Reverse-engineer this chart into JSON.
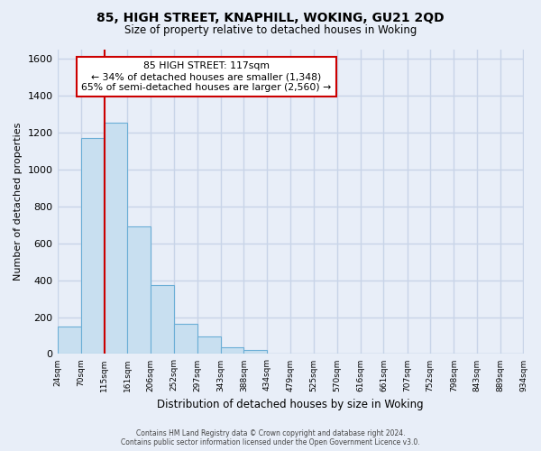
{
  "title": "85, HIGH STREET, KNAPHILL, WOKING, GU21 2QD",
  "subtitle": "Size of property relative to detached houses in Woking",
  "xlabel": "Distribution of detached houses by size in Woking",
  "ylabel": "Number of detached properties",
  "bins": [
    24,
    70,
    115,
    161,
    206,
    252,
    297,
    343,
    388,
    434,
    479,
    525,
    570,
    616,
    661,
    707,
    752,
    798,
    843,
    889,
    934
  ],
  "counts": [
    150,
    1170,
    1255,
    690,
    375,
    165,
    93,
    37,
    22,
    0,
    0,
    0,
    0,
    0,
    0,
    0,
    0,
    0,
    0,
    0
  ],
  "bar_color": "#c8dff0",
  "bar_edge_color": "#6baed6",
  "property_line_x": 117,
  "annotation_title": "85 HIGH STREET: 117sqm",
  "annotation_line1": "← 34% of detached houses are smaller (1,348)",
  "annotation_line2": "65% of semi-detached houses are larger (2,560) →",
  "annotation_box_color": "#ffffff",
  "annotation_box_edge": "#cc0000",
  "property_line_color": "#cc0000",
  "ylim": [
    0,
    1650
  ],
  "background_color": "#e8eef8",
  "grid_color": "#c8d4e8",
  "footer_line1": "Contains HM Land Registry data © Crown copyright and database right 2024.",
  "footer_line2": "Contains public sector information licensed under the Open Government Licence v3.0.",
  "tick_labels": [
    "24sqm",
    "70sqm",
    "115sqm",
    "161sqm",
    "206sqm",
    "252sqm",
    "297sqm",
    "343sqm",
    "388sqm",
    "434sqm",
    "479sqm",
    "525sqm",
    "570sqm",
    "616sqm",
    "661sqm",
    "707sqm",
    "752sqm",
    "798sqm",
    "843sqm",
    "889sqm",
    "934sqm"
  ]
}
